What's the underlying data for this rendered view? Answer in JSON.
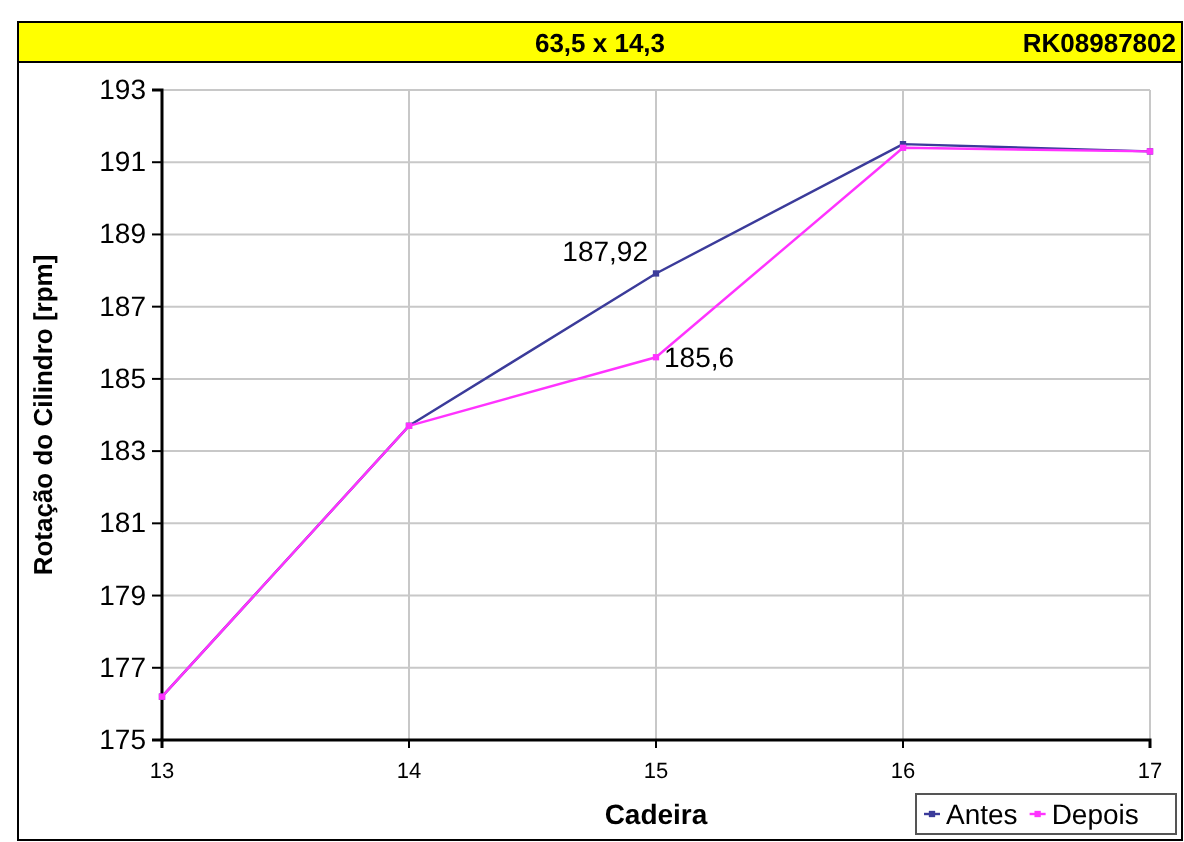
{
  "chart_data": {
    "type": "line",
    "title": "63,5 x 14,3",
    "annotations": [
      "RK08987802"
    ],
    "xlabel": "Cadeira",
    "ylabel": "Rotação do Cilindro [rpm]",
    "x": [
      13,
      14,
      15,
      16,
      17
    ],
    "xlim": [
      13,
      17
    ],
    "xticks": [
      13,
      14,
      15,
      16,
      17
    ],
    "ylim": [
      175,
      193
    ],
    "yticks": [
      175,
      177,
      179,
      181,
      183,
      185,
      187,
      189,
      191,
      193
    ],
    "series": [
      {
        "name": "Antes",
        "color": "#3b3b9a",
        "values": [
          176.2,
          183.7,
          187.92,
          191.5,
          191.3
        ],
        "value_labels": [
          null,
          null,
          "187,92",
          null,
          null
        ]
      },
      {
        "name": "Depois",
        "color": "#ff33ff",
        "values": [
          176.2,
          183.7,
          185.6,
          191.4,
          191.3
        ],
        "value_labels": [
          null,
          null,
          "185,6",
          null,
          null
        ]
      }
    ],
    "grid": true,
    "legend": "bottom right",
    "marker": "square",
    "line_style": "solid"
  }
}
